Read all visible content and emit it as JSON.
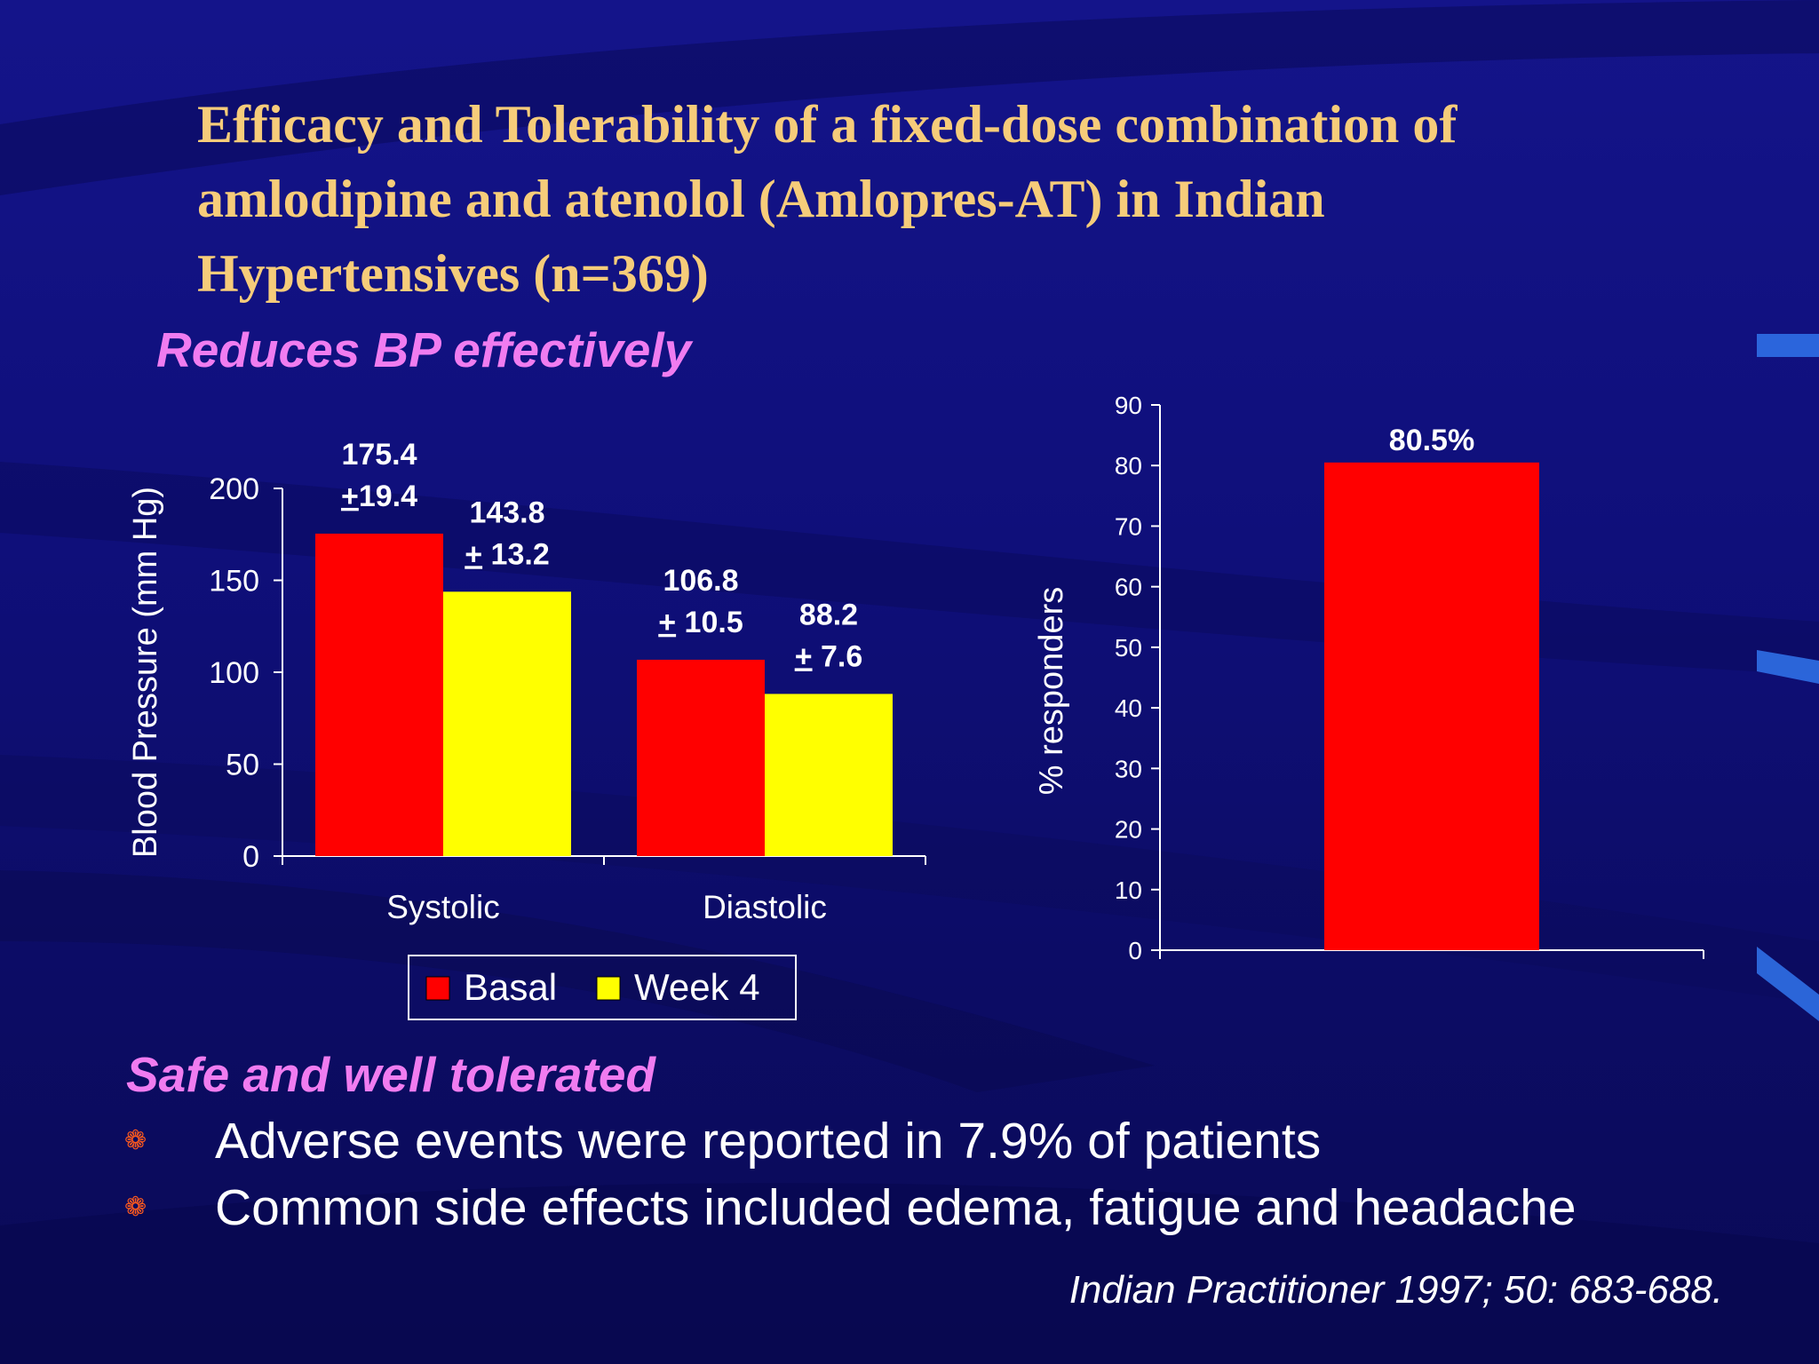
{
  "slide": {
    "title": "Efficacy and Tolerability of a fixed-dose combination of\namlodipine and atenolol (Amlopres-AT)  in Indian\nHypertensives (n=369)",
    "subheading_1": "Reduces BP effectively",
    "subheading_2": "Safe and well tolerated",
    "bullets": [
      "Adverse events were reported in 7.9% of patients",
      "Common side effects included edema, fatigue and headache"
    ],
    "citation": "Indian Practitioner 1997; 50: 683-688.",
    "colors": {
      "title": "#f6cc7a",
      "subheading": "#f07cf0",
      "bullet": "#ff5a1e",
      "basal": "#ff0000",
      "week4": "#ffff00"
    },
    "icons": [
      "flower-bullet-icon"
    ]
  },
  "chart_data": [
    {
      "type": "bar",
      "categories": [
        "Systolic",
        "Diastolic"
      ],
      "series": [
        {
          "name": "Basal",
          "values": [
            175.4,
            106.8
          ],
          "labels": [
            "175.4\n+19.4",
            "106.8\n+ 10.5"
          ]
        },
        {
          "name": "Week 4",
          "values": [
            143.8,
            88.2
          ],
          "labels": [
            "143.8\n+ 13.2",
            "88.2\n+ 7.6"
          ]
        }
      ],
      "ylabel": "Blood Pressure (mm Hg)",
      "ylim": [
        0,
        200
      ],
      "yticks": [
        0,
        50,
        100,
        150,
        200
      ],
      "legend": "bottom",
      "grid": false
    },
    {
      "type": "bar",
      "categories": [
        ""
      ],
      "series": [
        {
          "values": [
            80.5
          ],
          "labels": [
            "80.5%"
          ]
        }
      ],
      "ylabel": "% responders",
      "ylim": [
        0,
        90
      ],
      "yticks": [
        0,
        10,
        20,
        30,
        40,
        50,
        60,
        70,
        80,
        90
      ],
      "grid": false
    }
  ]
}
